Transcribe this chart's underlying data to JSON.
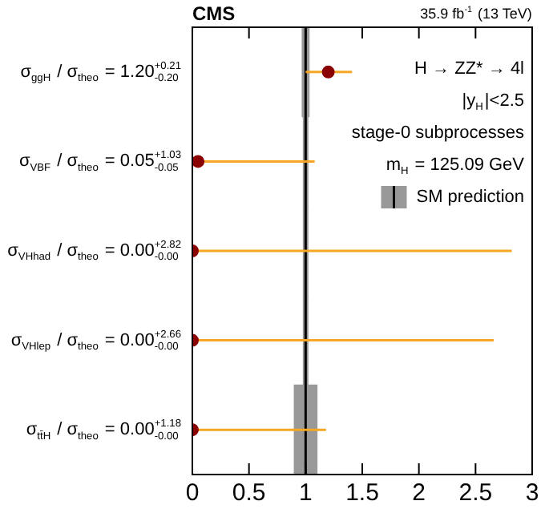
{
  "chart_data": {
    "type": "scatter",
    "title": "CMS",
    "orientation": "horizontal",
    "categories": [
      "σ$_{ggH}$ / σ$_{theo}$ = 1.20$^{+0.21}$$_{-0.20}$",
      "σ$_{VBF}$ / σ$_{theo}$ = 0.05$^{+1.03}$$_{-0.05}$",
      "σ$_{VHhad}$ / σ$_{theo}$ = 0.00$^{+2.82}$$_{-0.00}$",
      "σ$_{VHlep}$ / σ$_{theo}$ = 0.00$^{+2.66}$$_{-0.00}$",
      "σ$_{tt̄H}$ / σ$_{theo}$ = 0.00$^{+1.18}$$_{-0.00}$"
    ],
    "series": [
      {
        "name": "SM prediction",
        "type": "bar",
        "color": "#999999",
        "base": [
          0.97,
          0.98,
          0.98,
          0.98,
          0.9
        ],
        "values": [
          0.06,
          0.04,
          0.04,
          0.04,
          0.2
        ]
      },
      {
        "color": "#8b0000",
        "values": [
          1.2,
          0.05,
          0,
          0,
          0
        ],
        "errors": [
          [
            1.0,
            1.41
          ],
          [
            0,
            1.08
          ],
          [
            0,
            2.82
          ],
          [
            0,
            2.66
          ],
          [
            0,
            1.18
          ]
        ]
      }
    ],
    "ref_lines": [
      {
        "axis": "x",
        "value": 1,
        "color": "#000000"
      }
    ],
    "xlim": [
      0,
      3
    ],
    "xticks": [
      0,
      0.5,
      1,
      1.5,
      2,
      2.5,
      3
    ],
    "grid": false,
    "legend": "top right",
    "marker": "circle",
    "annotations": [
      "35.9 fb$^{-1}$ (13 TeV)",
      "H → ZZ* → 4l",
      "|y$_{H}$|<2.5",
      "stage-0 subprocesses",
      "m$_{H}$ = 125.09 GeV"
    ]
  }
}
